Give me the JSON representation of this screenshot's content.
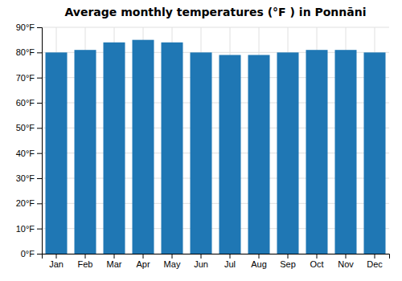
{
  "chart_data": {
    "type": "bar",
    "title": "Average monthly temperatures (°F ) in Ponnāni",
    "categories": [
      "Jan",
      "Feb",
      "Mar",
      "Apr",
      "May",
      "Jun",
      "Jul",
      "Aug",
      "Sep",
      "Oct",
      "Nov",
      "Dec"
    ],
    "values": [
      80,
      81,
      84,
      85,
      84,
      80,
      79,
      79,
      80,
      81,
      81,
      80
    ],
    "ylim": [
      0,
      90
    ],
    "yticks": [
      {
        "value": 0,
        "label": "0°F"
      },
      {
        "value": 10,
        "label": "10°F"
      },
      {
        "value": 20,
        "label": "20°F"
      },
      {
        "value": 30,
        "label": "30°F"
      },
      {
        "value": 40,
        "label": "40°F"
      },
      {
        "value": 50,
        "label": "50°F"
      },
      {
        "value": 60,
        "label": "60°F"
      },
      {
        "value": 70,
        "label": "70°F"
      },
      {
        "value": 80,
        "label": "80°F"
      },
      {
        "value": 90,
        "label": "90°F"
      }
    ],
    "grid": true
  }
}
